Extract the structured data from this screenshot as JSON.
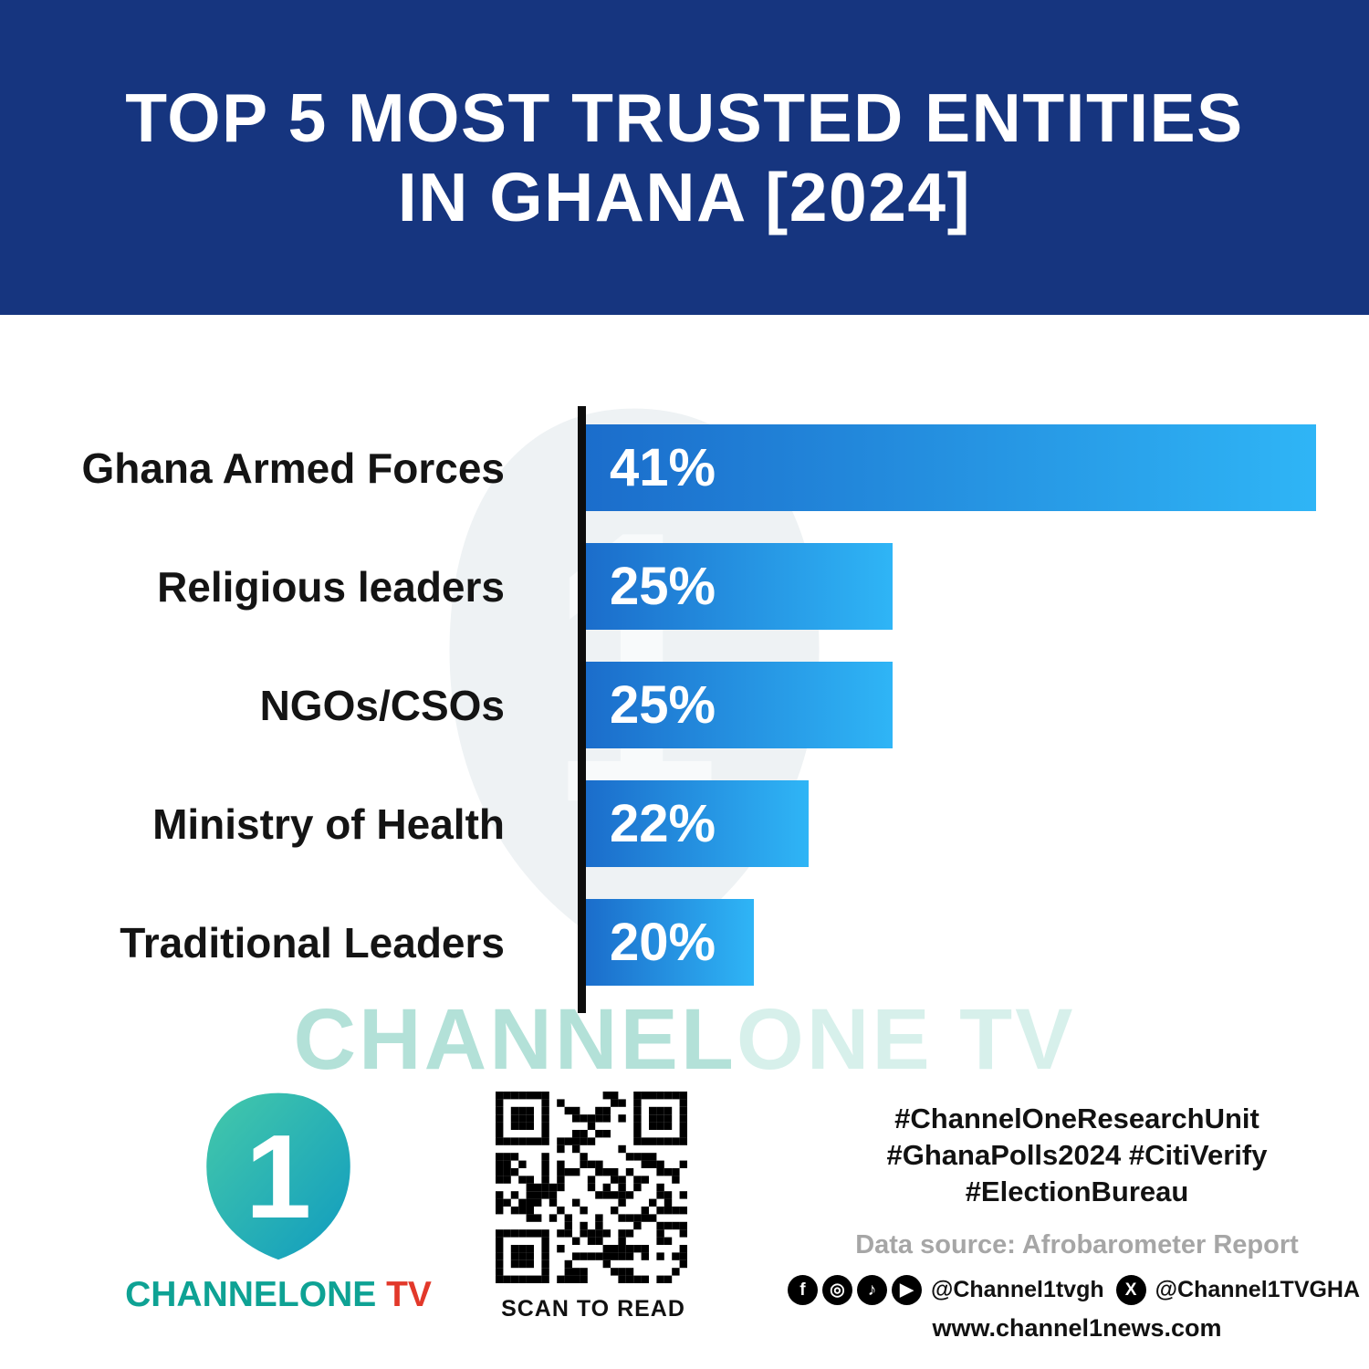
{
  "header": {
    "title_lines": [
      "TOP 5 MOST TRUSTED ENTITIES",
      "IN GHANA [2024]"
    ],
    "background_color": "#16357f"
  },
  "chart_data": {
    "type": "bar",
    "orientation": "horizontal",
    "title": "Top 5 Most Trusted Entities in Ghana [2024]",
    "categories": [
      "Ghana Armed Forces",
      "Religious leaders",
      "NGOs/CSOs",
      "Ministry of Health",
      "Traditional Leaders"
    ],
    "values": [
      41,
      25,
      25,
      22,
      20
    ],
    "value_labels": [
      "41%",
      "25%",
      "25%",
      "22%",
      "20%"
    ],
    "xlim": [
      0,
      41
    ],
    "grid": false,
    "legend": false,
    "bar_visual_width_pct": [
      100,
      42,
      42,
      30.5,
      23
    ],
    "bar_gradient_start": "#1b6dcb",
    "bar_gradient_end": "#2fb5f6",
    "axis_color": "#0d0d0d"
  },
  "watermark": {
    "part1": "CHANNEL",
    "part2": "ONE TV"
  },
  "footer": {
    "logo": {
      "text_channelone": "CHANNELONE",
      "text_tv": " TV",
      "digit": "1",
      "colors": {
        "teal": "#0ea294",
        "red": "#e2382a"
      }
    },
    "qr_label": "SCAN TO READ",
    "hashtag_lines": [
      "#ChannelOneResearchUnit",
      "#GhanaPolls2024 #CitiVerify",
      "#ElectionBureau"
    ],
    "data_source": "Data source: Afrobarometer Report",
    "social": {
      "icons": [
        {
          "name": "facebook-icon",
          "glyph": "f"
        },
        {
          "name": "instagram-icon",
          "glyph": "◎"
        },
        {
          "name": "tiktok-icon",
          "glyph": "♪"
        },
        {
          "name": "youtube-icon",
          "glyph": "▶"
        }
      ],
      "handle1": "@Channel1tvgh",
      "x_glyph": "X",
      "handle2": "@Channel1TVGHA"
    },
    "website": "www.channel1news.com"
  }
}
